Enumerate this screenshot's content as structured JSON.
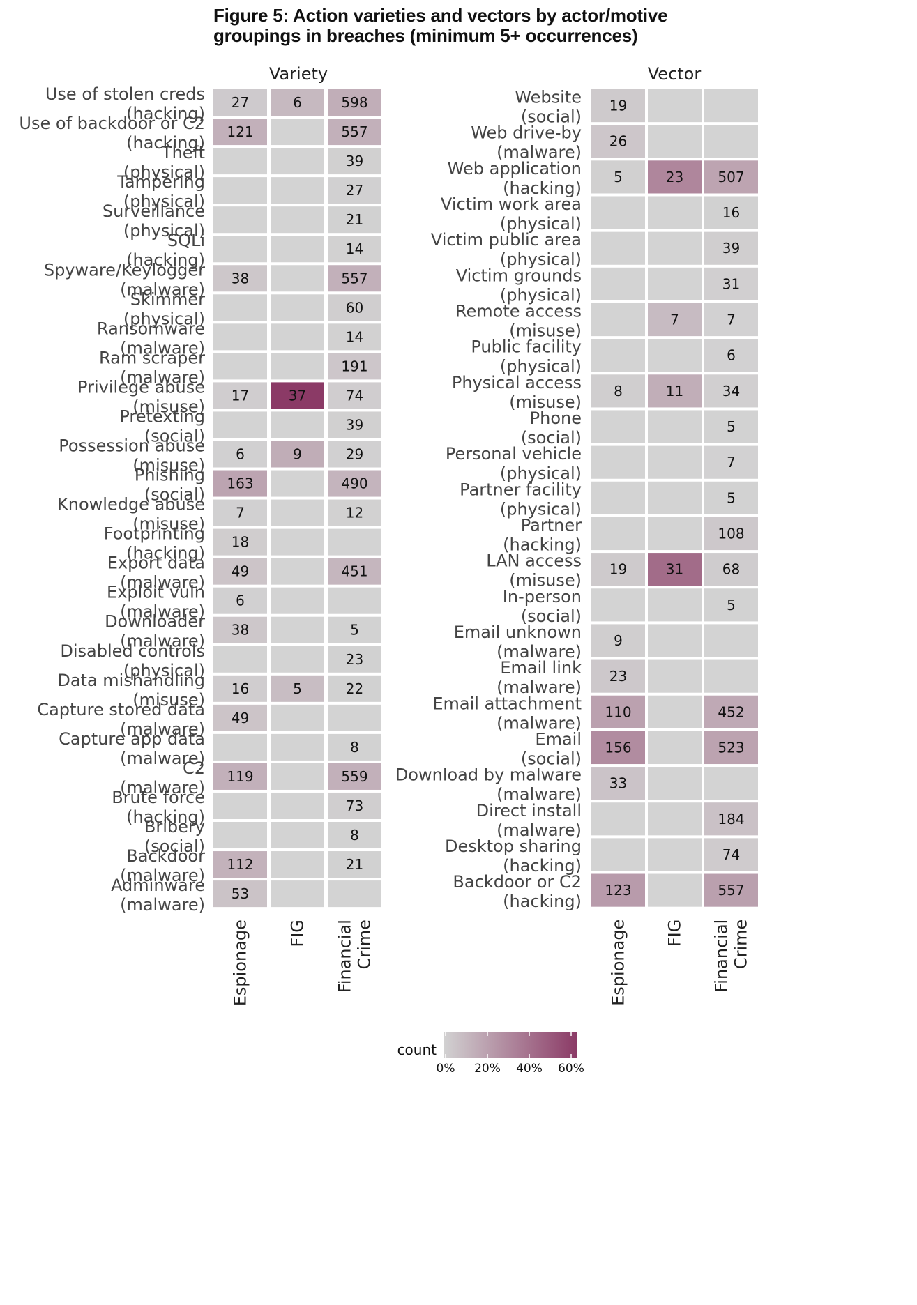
{
  "title": "Figure 5: Action varieties and vectors by actor/motive groupings in breaches (minimum 5+ occurrences)",
  "chart_data": [
    {
      "type": "heatmap",
      "panel": "Variety",
      "columns": [
        "Espionage",
        "FIG",
        "Financial\nCrime"
      ],
      "rows": [
        "Use of stolen creds\n(hacking)",
        "Use of backdoor or C2\n(hacking)",
        "Theft\n(physical)",
        "Tampering\n(physical)",
        "Surveillance\n(physical)",
        "SQLi\n(hacking)",
        "Spyware/Keylogger\n(malware)",
        "Skimmer\n(physical)",
        "Ransomware\n(malware)",
        "Ram scraper\n(malware)",
        "Privilege abuse\n(misuse)",
        "Pretexting\n(social)",
        "Possession abuse\n(misuse)",
        "Phishing\n(social)",
        "Knowledge abuse\n(misuse)",
        "Footprinting\n(hacking)",
        "Export data\n(malware)",
        "Exploit vuln\n(malware)",
        "Downloader\n(malware)",
        "Disabled controls\n(physical)",
        "Data mishandling\n(misuse)",
        "Capture stored data\n(malware)",
        "Capture app data\n(malware)",
        "C2\n(malware)",
        "Brute force\n(hacking)",
        "Bribery\n(social)",
        "Backdoor\n(malware)",
        "Adminware\n(malware)"
      ],
      "counts": [
        [
          27,
          6,
          598
        ],
        [
          121,
          null,
          557
        ],
        [
          null,
          null,
          39
        ],
        [
          null,
          null,
          27
        ],
        [
          null,
          null,
          21
        ],
        [
          null,
          null,
          14
        ],
        [
          38,
          null,
          557
        ],
        [
          null,
          null,
          60
        ],
        [
          null,
          null,
          14
        ],
        [
          null,
          null,
          191
        ],
        [
          17,
          37,
          74
        ],
        [
          null,
          null,
          39
        ],
        [
          6,
          9,
          29
        ],
        [
          163,
          null,
          490
        ],
        [
          7,
          null,
          12
        ],
        [
          18,
          null,
          null
        ],
        [
          49,
          null,
          451
        ],
        [
          6,
          null,
          null
        ],
        [
          38,
          null,
          5
        ],
        [
          null,
          null,
          23
        ],
        [
          16,
          5,
          22
        ],
        [
          49,
          null,
          null
        ],
        [
          null,
          null,
          8
        ],
        [
          119,
          null,
          559
        ],
        [
          null,
          null,
          73
        ],
        [
          null,
          null,
          8
        ],
        [
          112,
          null,
          21
        ],
        [
          53,
          null,
          null
        ]
      ]
    },
    {
      "type": "heatmap",
      "panel": "Vector",
      "columns": [
        "Espionage",
        "FIG",
        "Financial\nCrime"
      ],
      "rows": [
        "Website\n(social)",
        "Web drive-by\n(malware)",
        "Web application\n(hacking)",
        "Victim work area\n(physical)",
        "Victim public area\n(physical)",
        "Victim grounds\n(physical)",
        "Remote access\n(misuse)",
        "Public facility\n(physical)",
        "Physical access\n(misuse)",
        "Phone\n(social)",
        "Personal vehicle\n(physical)",
        "Partner facility\n(physical)",
        "Partner\n(hacking)",
        "LAN access\n(misuse)",
        "In-person\n(social)",
        "Email unknown\n(malware)",
        "Email link\n(malware)",
        "Email attachment\n(malware)",
        "Email\n(social)",
        "Download by malware\n(malware)",
        "Direct install\n(malware)",
        "Desktop sharing\n(hacking)",
        "Backdoor or C2\n(hacking)"
      ],
      "counts": [
        [
          19,
          null,
          null
        ],
        [
          26,
          null,
          null
        ],
        [
          5,
          23,
          507
        ],
        [
          null,
          null,
          16
        ],
        [
          null,
          null,
          39
        ],
        [
          null,
          null,
          31
        ],
        [
          null,
          7,
          7
        ],
        [
          null,
          null,
          6
        ],
        [
          8,
          11,
          34
        ],
        [
          null,
          null,
          5
        ],
        [
          null,
          null,
          7
        ],
        [
          null,
          null,
          5
        ],
        [
          null,
          null,
          108
        ],
        [
          19,
          31,
          68
        ],
        [
          null,
          null,
          5
        ],
        [
          9,
          null,
          null
        ],
        [
          23,
          null,
          null
        ],
        [
          110,
          null,
          452
        ],
        [
          156,
          null,
          523
        ],
        [
          33,
          null,
          null
        ],
        [
          null,
          null,
          184
        ],
        [
          null,
          null,
          74
        ],
        [
          123,
          null,
          557
        ]
      ]
    }
  ],
  "legend": {
    "title": "count",
    "ticks": [
      "0%",
      "20%",
      "40%",
      "60%"
    ],
    "color_low": "#d2d2d2",
    "color_high": "#8b3a66",
    "empty_color": "#d3d3d3"
  }
}
